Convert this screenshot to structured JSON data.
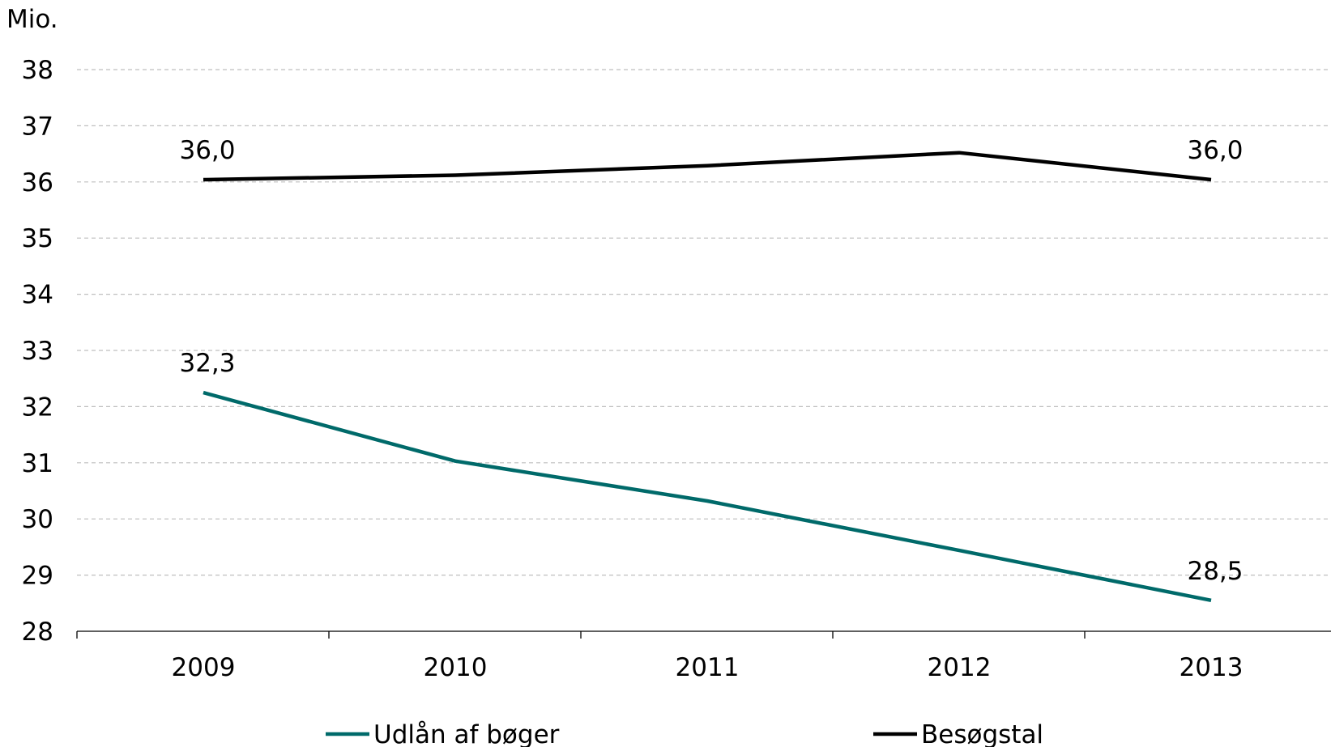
{
  "chart_data": {
    "type": "line",
    "title": "",
    "unit_label": "Mio.",
    "xlabel": "",
    "ylabel": "",
    "categories": [
      "2009",
      "2010",
      "2011",
      "2012",
      "2013"
    ],
    "ylim": [
      28,
      38
    ],
    "yticks": [
      "28",
      "29",
      "30",
      "31",
      "32",
      "33",
      "34",
      "35",
      "36",
      "37",
      "38"
    ],
    "grid": true,
    "legend_position": "bottom",
    "series": [
      {
        "name": "Udlån af bøger",
        "color": "#006a6a",
        "values": [
          32.25,
          31.03,
          30.32,
          29.44,
          28.55
        ],
        "data_labels": [
          {
            "index": 0,
            "text": "32,3"
          },
          {
            "index": 4,
            "text": "28,5"
          }
        ]
      },
      {
        "name": "Besøgstal",
        "color": "#000000",
        "values": [
          36.04,
          36.12,
          36.29,
          36.52,
          36.04
        ],
        "data_labels": [
          {
            "index": 0,
            "text": "36,0"
          },
          {
            "index": 4,
            "text": "36,0"
          }
        ]
      }
    ]
  }
}
